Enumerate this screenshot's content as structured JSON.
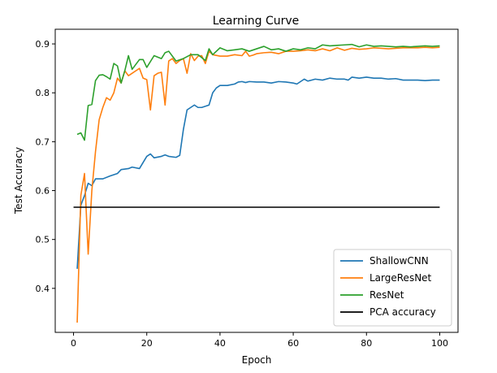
{
  "chart_data": {
    "type": "line",
    "title": "Learning Curve",
    "xlabel": "Epoch",
    "ylabel": "Test Accuracy",
    "xlim": [
      -5,
      105
    ],
    "ylim": [
      0.31,
      0.93
    ],
    "xticks": [
      0,
      20,
      40,
      60,
      80,
      100
    ],
    "yticks": [
      0.4,
      0.5,
      0.6,
      0.7,
      0.8,
      0.9
    ],
    "grid": false,
    "legend_position": "lower-right",
    "series": [
      {
        "name": "ShallowCNN",
        "color": "#1f77b4",
        "x": [
          1,
          2,
          3,
          4,
          5,
          6,
          8,
          10,
          12,
          13,
          15,
          16,
          18,
          20,
          21,
          22,
          24,
          25,
          26,
          28,
          29,
          30,
          31,
          33,
          34,
          35,
          37,
          38,
          39,
          40,
          42,
          44,
          45,
          46,
          47,
          48,
          50,
          52,
          54,
          56,
          58,
          60,
          61,
          63,
          64,
          66,
          68,
          70,
          72,
          74,
          75,
          76,
          78,
          80,
          82,
          84,
          86,
          88,
          90,
          92,
          94,
          96,
          98,
          100
        ],
        "y": [
          0.44,
          0.57,
          0.59,
          0.615,
          0.61,
          0.624,
          0.624,
          0.63,
          0.635,
          0.643,
          0.645,
          0.648,
          0.645,
          0.67,
          0.675,
          0.667,
          0.67,
          0.673,
          0.67,
          0.668,
          0.672,
          0.725,
          0.765,
          0.775,
          0.77,
          0.77,
          0.775,
          0.8,
          0.81,
          0.815,
          0.815,
          0.818,
          0.822,
          0.823,
          0.821,
          0.823,
          0.822,
          0.822,
          0.82,
          0.823,
          0.822,
          0.82,
          0.818,
          0.828,
          0.824,
          0.828,
          0.826,
          0.83,
          0.828,
          0.828,
          0.826,
          0.832,
          0.83,
          0.832,
          0.83,
          0.83,
          0.828,
          0.829,
          0.826,
          0.826,
          0.826,
          0.825,
          0.826,
          0.826
        ]
      },
      {
        "name": "LargeResNet",
        "color": "#ff7f0e",
        "x": [
          1,
          2,
          3,
          4,
          5,
          6,
          7,
          8,
          9,
          10,
          11,
          12,
          13,
          14,
          15,
          16,
          18,
          19,
          20,
          21,
          22,
          23,
          24,
          25,
          26,
          27,
          28,
          29,
          30,
          31,
          32,
          33,
          34,
          35,
          36,
          37,
          38,
          40,
          42,
          44,
          46,
          47,
          48,
          49,
          50,
          52,
          54,
          56,
          58,
          60,
          62,
          64,
          66,
          68,
          70,
          72,
          74,
          76,
          78,
          80,
          82,
          84,
          86,
          88,
          90,
          92,
          94,
          96,
          98,
          100
        ],
        "y": [
          0.33,
          0.59,
          0.635,
          0.47,
          0.6,
          0.68,
          0.745,
          0.77,
          0.79,
          0.785,
          0.8,
          0.83,
          0.82,
          0.845,
          0.835,
          0.84,
          0.85,
          0.83,
          0.827,
          0.765,
          0.835,
          0.84,
          0.842,
          0.775,
          0.865,
          0.87,
          0.86,
          0.866,
          0.87,
          0.84,
          0.88,
          0.866,
          0.875,
          0.876,
          0.86,
          0.885,
          0.878,
          0.875,
          0.875,
          0.878,
          0.876,
          0.885,
          0.875,
          0.877,
          0.88,
          0.882,
          0.883,
          0.88,
          0.885,
          0.885,
          0.886,
          0.888,
          0.886,
          0.89,
          0.886,
          0.892,
          0.887,
          0.891,
          0.889,
          0.89,
          0.892,
          0.891,
          0.89,
          0.891,
          0.892,
          0.892,
          0.892,
          0.893,
          0.892,
          0.893
        ]
      },
      {
        "name": "ResNet",
        "color": "#2ca02c",
        "x": [
          1,
          2,
          3,
          4,
          5,
          6,
          7,
          8,
          9,
          10,
          11,
          12,
          13,
          14,
          15,
          16,
          18,
          19,
          20,
          22,
          24,
          25,
          26,
          28,
          30,
          32,
          34,
          36,
          37,
          38,
          40,
          42,
          44,
          46,
          48,
          50,
          52,
          54,
          56,
          58,
          60,
          62,
          64,
          66,
          68,
          70,
          72,
          74,
          76,
          78,
          80,
          82,
          84,
          86,
          88,
          90,
          92,
          94,
          96,
          98,
          100
        ],
        "y": [
          0.715,
          0.718,
          0.703,
          0.774,
          0.776,
          0.825,
          0.836,
          0.837,
          0.833,
          0.828,
          0.86,
          0.855,
          0.82,
          0.845,
          0.876,
          0.848,
          0.868,
          0.868,
          0.852,
          0.876,
          0.87,
          0.882,
          0.885,
          0.865,
          0.87,
          0.878,
          0.878,
          0.866,
          0.89,
          0.878,
          0.892,
          0.886,
          0.888,
          0.89,
          0.885,
          0.89,
          0.895,
          0.888,
          0.89,
          0.885,
          0.89,
          0.888,
          0.892,
          0.89,
          0.898,
          0.896,
          0.897,
          0.898,
          0.899,
          0.894,
          0.898,
          0.895,
          0.896,
          0.895,
          0.894,
          0.895,
          0.894,
          0.895,
          0.896,
          0.895,
          0.896
        ]
      },
      {
        "name": "PCA accuracy",
        "color": "#000000",
        "x": [
          0,
          100
        ],
        "y": [
          0.566,
          0.566
        ]
      }
    ]
  }
}
